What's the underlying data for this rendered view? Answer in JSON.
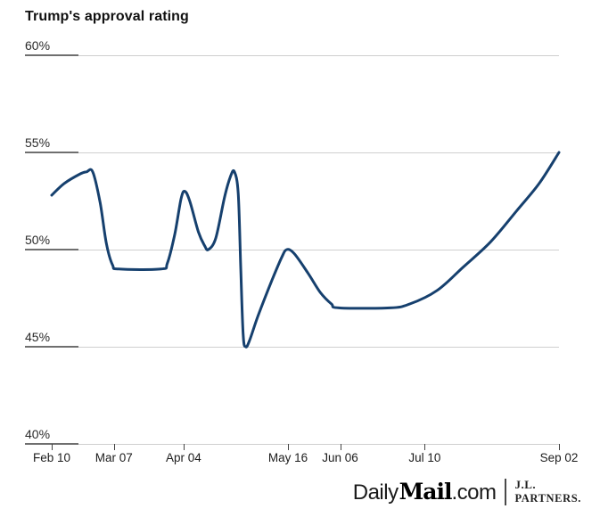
{
  "title": "Trump's approval rating",
  "chart_data": {
    "type": "line",
    "title": "Trump's approval rating",
    "xlabel": "",
    "ylabel": "",
    "ylim": [
      40,
      60
    ],
    "xlim_days": [
      0,
      204
    ],
    "grid": "horizontal",
    "legend": "none",
    "y_ticks": [
      {
        "label": "60%",
        "value": 60
      },
      {
        "label": "55%",
        "value": 55
      },
      {
        "label": "50%",
        "value": 50
      },
      {
        "label": "45%",
        "value": 45
      },
      {
        "label": "40%",
        "value": 40
      }
    ],
    "x_ticks": [
      {
        "label": "Feb 10",
        "day": 0
      },
      {
        "label": "Mar 07",
        "day": 25
      },
      {
        "label": "Apr 04",
        "day": 53
      },
      {
        "label": "May 16",
        "day": 95
      },
      {
        "label": "Jun 06",
        "day": 116
      },
      {
        "label": "Jul 10",
        "day": 150
      },
      {
        "label": "Sep 02",
        "day": 204
      }
    ],
    "series": [
      {
        "name": "Trump's approval rating",
        "color": "#16406e",
        "points_day_value": [
          [
            0,
            52.8
          ],
          [
            5,
            53.4
          ],
          [
            11.5,
            53.9
          ],
          [
            14,
            54
          ],
          [
            16.5,
            54
          ],
          [
            19.5,
            52.4
          ],
          [
            22,
            50.3
          ],
          [
            24.5,
            49.2
          ],
          [
            27,
            49
          ],
          [
            44,
            49
          ],
          [
            46.5,
            49.3
          ],
          [
            49.5,
            50.8
          ],
          [
            52,
            52.6
          ],
          [
            53.5,
            53
          ],
          [
            55.5,
            52.5
          ],
          [
            59,
            50.9
          ],
          [
            61.5,
            50.2
          ],
          [
            63,
            50
          ],
          [
            66,
            50.6
          ],
          [
            69.5,
            52.7
          ],
          [
            72,
            53.8
          ],
          [
            73.5,
            54
          ],
          [
            75,
            52.9
          ],
          [
            76,
            49.1
          ],
          [
            77,
            45.6
          ],
          [
            78,
            45
          ],
          [
            79.5,
            45.3
          ],
          [
            83,
            46.6
          ],
          [
            88.5,
            48.4
          ],
          [
            92.5,
            49.6
          ],
          [
            94.5,
            50
          ],
          [
            97.5,
            49.8
          ],
          [
            103,
            48.8
          ],
          [
            108,
            47.8
          ],
          [
            112.5,
            47.2
          ],
          [
            115.5,
            47
          ],
          [
            136,
            47
          ],
          [
            144,
            47.2
          ],
          [
            155,
            47.9
          ],
          [
            165.5,
            49.1
          ],
          [
            176.5,
            50.4
          ],
          [
            187,
            52
          ],
          [
            196,
            53.4
          ],
          [
            204,
            55
          ]
        ]
      }
    ]
  },
  "footer": {
    "brand_daily": "Daily",
    "brand_mail": "Mail",
    "brand_com": ".com",
    "partner_line1": "J.L.",
    "partner_line2": "PARTNERS."
  },
  "colors": {
    "line": "#16406e",
    "gridline": "#cfcfcf",
    "tick_segment": "#6f6f6f",
    "text": "#2a2a2a"
  }
}
